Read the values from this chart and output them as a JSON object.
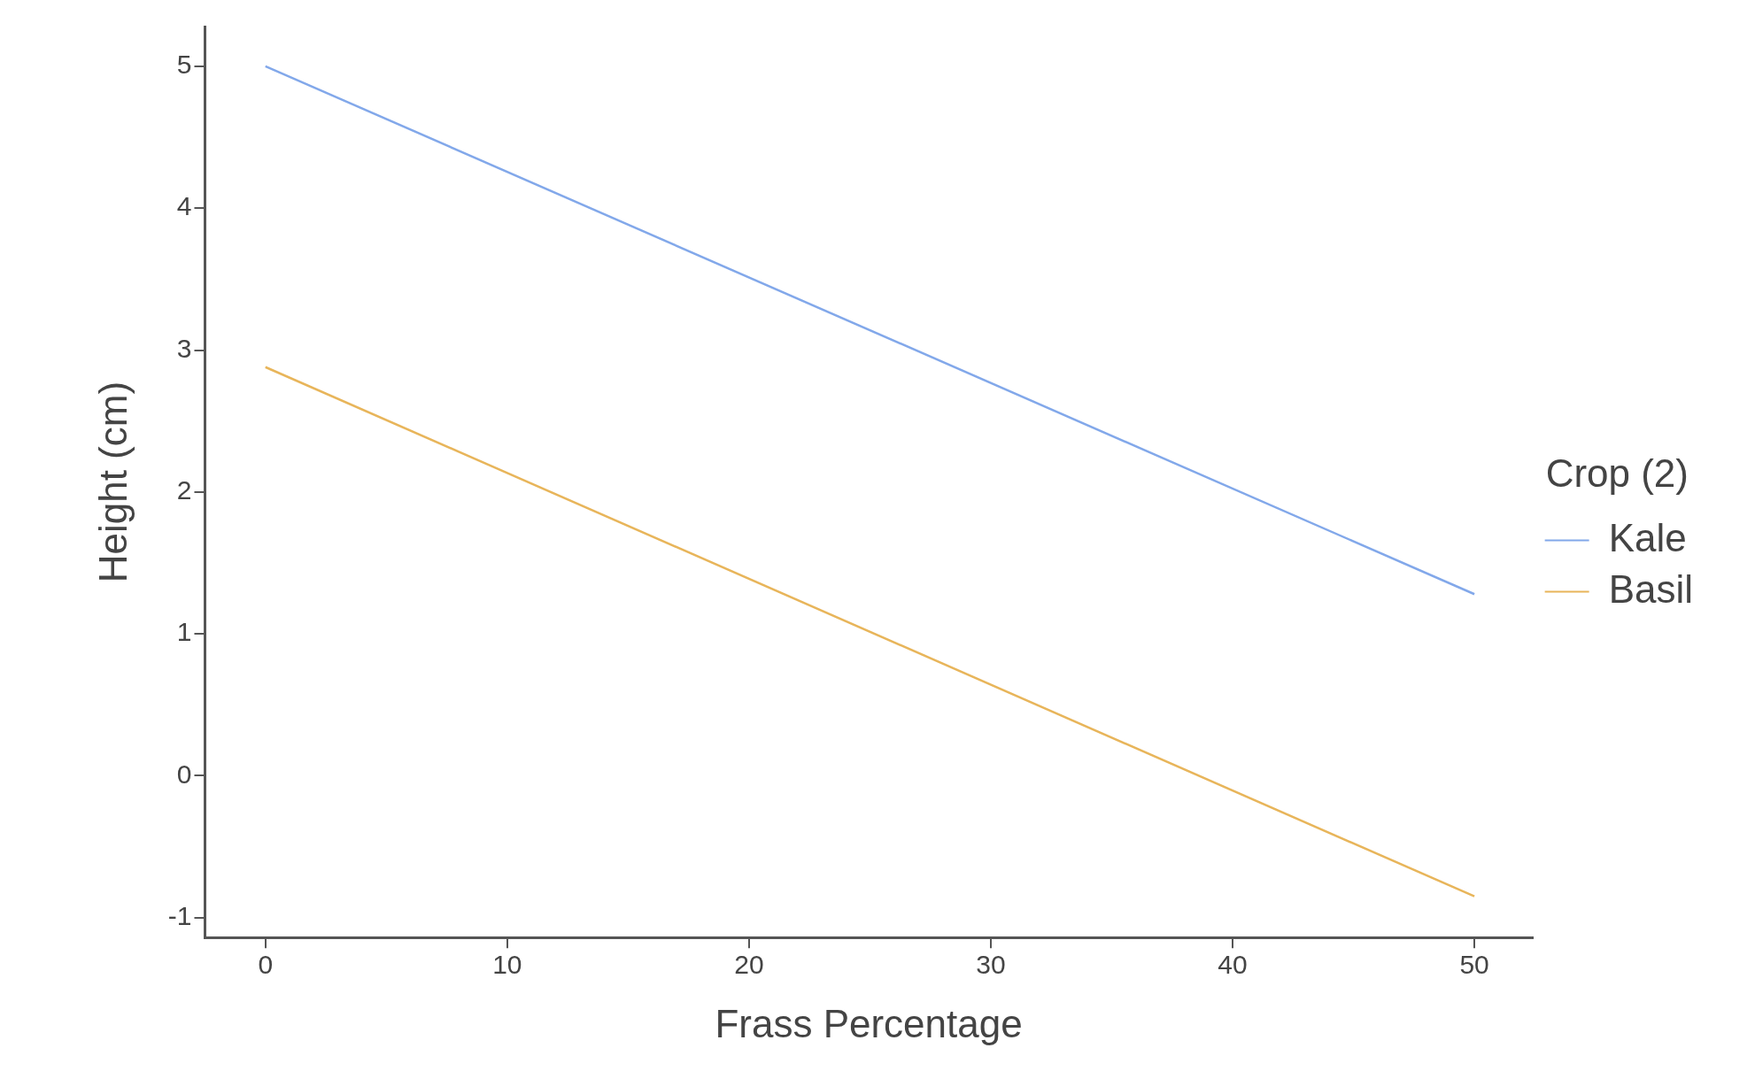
{
  "chart_data": {
    "type": "line",
    "xlabel": "Frass Percentage",
    "ylabel": "Height (cm)",
    "legend_title": "Crop (2)",
    "legend": "right",
    "grid": false,
    "marker": "none",
    "line_style": "solid",
    "x": [
      0,
      50
    ],
    "xlim": [
      -2.5,
      52.4
    ],
    "xticks": [
      0,
      10,
      20,
      30,
      40,
      50
    ],
    "ylim": [
      -1.14,
      5.28
    ],
    "yticks": [
      -1,
      0,
      1,
      2,
      3,
      4,
      5
    ],
    "series": [
      {
        "name": "Kale",
        "color": "#82a8ea",
        "values": [
          5.0,
          1.28
        ]
      },
      {
        "name": "Basil",
        "color": "#e8b55a",
        "values": [
          2.88,
          -0.85
        ]
      }
    ]
  }
}
